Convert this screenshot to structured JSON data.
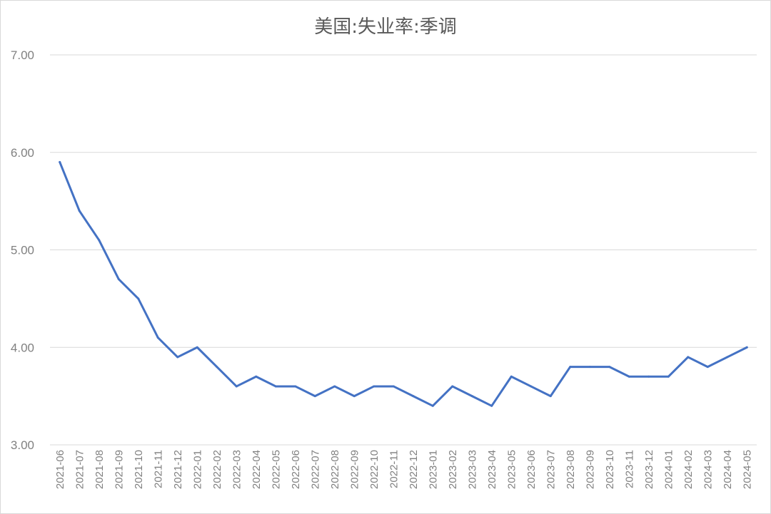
{
  "chart_data": {
    "type": "line",
    "title": "美国:失业率:季调",
    "xlabel": "",
    "ylabel": "",
    "ylim": [
      3.0,
      7.0
    ],
    "yticks": [
      "3.00",
      "4.00",
      "5.00",
      "6.00",
      "7.00"
    ],
    "grid": true,
    "categories": [
      "2021-06",
      "2021-07",
      "2021-08",
      "2021-09",
      "2021-10",
      "2021-11",
      "2021-12",
      "2022-01",
      "2022-02",
      "2022-03",
      "2022-04",
      "2022-05",
      "2022-06",
      "2022-07",
      "2022-08",
      "2022-09",
      "2022-10",
      "2022-11",
      "2022-12",
      "2023-01",
      "2023-02",
      "2023-03",
      "2023-04",
      "2023-05",
      "2023-06",
      "2023-07",
      "2023-08",
      "2023-09",
      "2023-10",
      "2023-11",
      "2023-12",
      "2024-01",
      "2024-02",
      "2024-03",
      "2024-04",
      "2024-05"
    ],
    "series": [
      {
        "color": "#4472c4",
        "values": [
          5.9,
          5.4,
          5.1,
          4.7,
          4.5,
          4.1,
          3.9,
          4.0,
          3.8,
          3.6,
          3.7,
          3.6,
          3.6,
          3.5,
          3.6,
          3.5,
          3.6,
          3.6,
          3.5,
          3.4,
          3.6,
          3.5,
          3.4,
          3.7,
          3.6,
          3.5,
          3.8,
          3.8,
          3.8,
          3.7,
          3.7,
          3.7,
          3.9,
          3.8,
          3.9,
          4.0
        ]
      }
    ]
  }
}
